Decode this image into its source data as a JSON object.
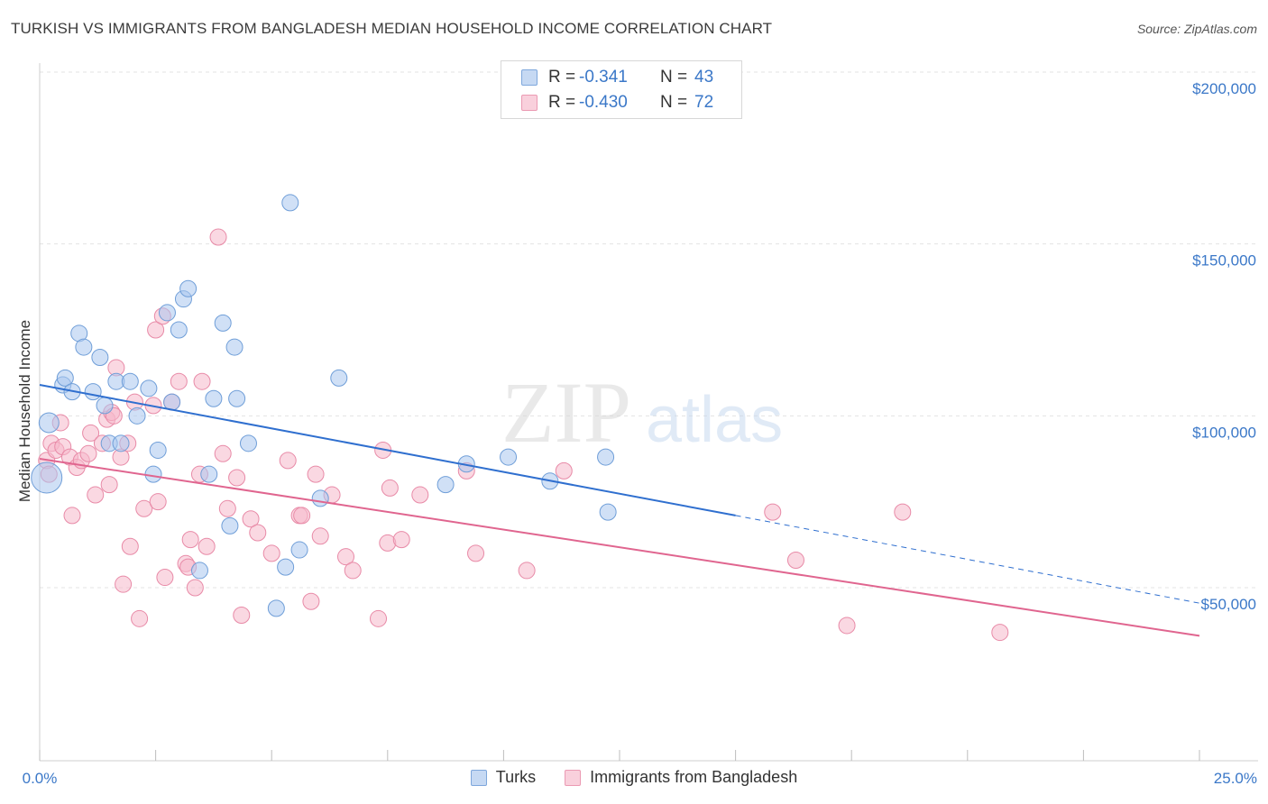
{
  "title": "TURKISH VS IMMIGRANTS FROM BANGLADESH MEDIAN HOUSEHOLD INCOME CORRELATION CHART",
  "source": "Source: ZipAtlas.com",
  "watermark": {
    "zip": "ZIP",
    "atlas": "atlas"
  },
  "legend_top": [
    {
      "r_label": "R =",
      "r_value": "-0.341",
      "n_label": "N =",
      "n_value": "43",
      "color": "#a9c6ee"
    },
    {
      "r_label": "R =",
      "r_value": "-0.430",
      "n_label": "N =",
      "n_value": "72",
      "color": "#f5b8ca"
    }
  ],
  "legend_bottom": [
    {
      "label": "Turks",
      "color": "#a9c6ee"
    },
    {
      "label": "Immigrants from Bangladesh",
      "color": "#f5b8ca"
    }
  ],
  "colors": {
    "blue_fill": "#a9c6ee",
    "blue_stroke": "#6f9ed8",
    "blue_line": "#2f6fcf",
    "pink_fill": "#f5b8ca",
    "pink_stroke": "#e88aa7",
    "pink_line": "#e0658f",
    "tick_text": "#3b78c8",
    "grid": "#e3e3e3"
  },
  "chart_data": {
    "type": "scatter",
    "title": "TURKISH VS IMMIGRANTS FROM BANGLADESH MEDIAN HOUSEHOLD INCOME CORRELATION CHART",
    "xlabel": "",
    "ylabel": "Median Household Income",
    "xlim": [
      0,
      25
    ],
    "ylim": [
      0,
      210000
    ],
    "x_tick_labels": [
      "0.0%",
      "25.0%"
    ],
    "y_ticks": [
      50000,
      100000,
      150000,
      200000
    ],
    "y_tick_labels": [
      "$50,000",
      "$100,000",
      "$150,000",
      "$200,000"
    ],
    "grid": true,
    "series": [
      {
        "name": "Turks",
        "points": [
          [
            0.2,
            98000
          ],
          [
            0.5,
            109000
          ],
          [
            0.55,
            111000
          ],
          [
            0.7,
            107000
          ],
          [
            0.85,
            124000
          ],
          [
            0.95,
            120000
          ],
          [
            1.15,
            107000
          ],
          [
            1.3,
            117000
          ],
          [
            1.4,
            103000
          ],
          [
            1.5,
            92000
          ],
          [
            1.65,
            110000
          ],
          [
            1.75,
            92000
          ],
          [
            1.95,
            110000
          ],
          [
            2.1,
            100000
          ],
          [
            2.35,
            108000
          ],
          [
            2.45,
            83000
          ],
          [
            2.55,
            90000
          ],
          [
            2.75,
            130000
          ],
          [
            2.85,
            104000
          ],
          [
            3.0,
            125000
          ],
          [
            3.1,
            134000
          ],
          [
            3.2,
            137000
          ],
          [
            3.45,
            55000
          ],
          [
            3.65,
            83000
          ],
          [
            3.75,
            105000
          ],
          [
            3.95,
            127000
          ],
          [
            4.1,
            68000
          ],
          [
            4.2,
            120000
          ],
          [
            4.25,
            105000
          ],
          [
            4.5,
            92000
          ],
          [
            5.1,
            44000
          ],
          [
            5.3,
            56000
          ],
          [
            5.4,
            162000
          ],
          [
            5.6,
            61000
          ],
          [
            6.05,
            76000
          ],
          [
            6.45,
            111000
          ],
          [
            8.75,
            80000
          ],
          [
            9.2,
            86000
          ],
          [
            10.1,
            88000
          ],
          [
            11.0,
            81000
          ],
          [
            12.2,
            88000
          ],
          [
            12.25,
            72000
          ],
          [
            0.15,
            82000
          ]
        ],
        "trend": {
          "x": [
            0,
            15
          ],
          "y": [
            109000,
            71000
          ],
          "dashed_to": [
            25,
            45500
          ]
        }
      },
      {
        "name": "Immigrants from Bangladesh",
        "points": [
          [
            0.15,
            87000
          ],
          [
            0.25,
            92000
          ],
          [
            0.35,
            90000
          ],
          [
            0.45,
            98000
          ],
          [
            0.5,
            91000
          ],
          [
            0.65,
            88000
          ],
          [
            0.7,
            71000
          ],
          [
            0.8,
            85000
          ],
          [
            0.9,
            87000
          ],
          [
            1.05,
            89000
          ],
          [
            1.1,
            95000
          ],
          [
            1.2,
            77000
          ],
          [
            1.35,
            92000
          ],
          [
            1.45,
            99000
          ],
          [
            1.55,
            101000
          ],
          [
            1.6,
            100000
          ],
          [
            1.65,
            114000
          ],
          [
            1.75,
            88000
          ],
          [
            1.8,
            51000
          ],
          [
            1.9,
            92000
          ],
          [
            1.95,
            62000
          ],
          [
            2.05,
            104000
          ],
          [
            2.15,
            41000
          ],
          [
            2.25,
            73000
          ],
          [
            2.45,
            103000
          ],
          [
            2.5,
            125000
          ],
          [
            2.55,
            75000
          ],
          [
            2.65,
            129000
          ],
          [
            2.7,
            53000
          ],
          [
            2.85,
            104000
          ],
          [
            3.0,
            110000
          ],
          [
            3.15,
            57000
          ],
          [
            3.2,
            56000
          ],
          [
            3.25,
            64000
          ],
          [
            3.35,
            50000
          ],
          [
            3.45,
            83000
          ],
          [
            3.5,
            110000
          ],
          [
            3.6,
            62000
          ],
          [
            3.85,
            152000
          ],
          [
            3.95,
            89000
          ],
          [
            4.05,
            73000
          ],
          [
            4.25,
            82000
          ],
          [
            4.35,
            42000
          ],
          [
            4.55,
            70000
          ],
          [
            4.7,
            66000
          ],
          [
            5.0,
            60000
          ],
          [
            5.35,
            87000
          ],
          [
            5.6,
            71000
          ],
          [
            5.65,
            71000
          ],
          [
            5.85,
            46000
          ],
          [
            5.95,
            83000
          ],
          [
            6.05,
            65000
          ],
          [
            6.3,
            77000
          ],
          [
            6.6,
            59000
          ],
          [
            6.75,
            55000
          ],
          [
            7.3,
            41000
          ],
          [
            7.4,
            90000
          ],
          [
            7.5,
            63000
          ],
          [
            7.55,
            79000
          ],
          [
            7.8,
            64000
          ],
          [
            8.2,
            77000
          ],
          [
            9.2,
            84000
          ],
          [
            9.4,
            60000
          ],
          [
            10.5,
            55000
          ],
          [
            11.3,
            84000
          ],
          [
            15.8,
            72000
          ],
          [
            16.3,
            58000
          ],
          [
            17.4,
            39000
          ],
          [
            18.6,
            72000
          ],
          [
            20.7,
            37000
          ],
          [
            0.2,
            83000
          ],
          [
            1.5,
            80000
          ]
        ],
        "trend": {
          "x": [
            0,
            25
          ],
          "y": [
            87500,
            36000
          ]
        }
      }
    ]
  }
}
